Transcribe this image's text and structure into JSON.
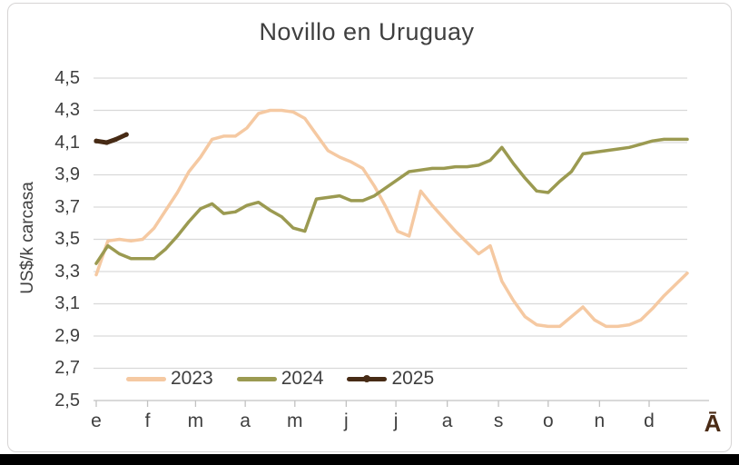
{
  "chart_data": {
    "type": "line",
    "title": "Novillo en Uruguay",
    "ylabel": "US$/k carcasa",
    "x_tick_labels": [
      "e",
      "f",
      "m",
      "a",
      "m",
      "j",
      "j",
      "a",
      "s",
      "o",
      "n",
      "d"
    ],
    "x_end_label": "Ā",
    "y_axis": {
      "min": 2.5,
      "max": 4.5,
      "step": 0.2,
      "tick_labels": [
        "4,5",
        "4,3",
        "4,1",
        "3,9",
        "3,7",
        "3,5",
        "3,3",
        "3,1",
        "2,9",
        "2,7",
        "2,5"
      ]
    },
    "grid": true,
    "legend_position": "inside-bottom-left",
    "colors": {
      "grid": "#d9d9d9",
      "axis": "#c2c2c2",
      "text": "#3f3f3f",
      "end_label": "#4a2b15"
    },
    "series": [
      {
        "name": "2023",
        "color": "#f5c9a2",
        "thick": false,
        "marker": false,
        "values": [
          3.28,
          3.49,
          3.5,
          3.49,
          3.5,
          3.57,
          3.68,
          3.79,
          3.92,
          4.01,
          4.12,
          4.14,
          4.14,
          4.19,
          4.28,
          4.3,
          4.3,
          4.29,
          4.25,
          4.15,
          4.05,
          4.01,
          3.98,
          3.94,
          3.83,
          3.7,
          3.55,
          3.52,
          3.8,
          3.71,
          3.63,
          3.55,
          3.48,
          3.41,
          3.46,
          3.24,
          3.12,
          3.02,
          2.97,
          2.96,
          2.96,
          3.02,
          3.08,
          3.0,
          2.96,
          2.96,
          2.97,
          3.0,
          3.07,
          3.15,
          3.22,
          3.29
        ]
      },
      {
        "name": "2024",
        "color": "#9b9a51",
        "thick": false,
        "marker": false,
        "values": [
          3.35,
          3.46,
          3.41,
          3.38,
          3.38,
          3.38,
          3.44,
          3.52,
          3.61,
          3.69,
          3.72,
          3.66,
          3.67,
          3.71,
          3.73,
          3.68,
          3.64,
          3.57,
          3.55,
          3.75,
          3.76,
          3.77,
          3.74,
          3.74,
          3.77,
          3.82,
          3.87,
          3.92,
          3.93,
          3.94,
          3.94,
          3.95,
          3.95,
          3.96,
          3.99,
          4.07,
          3.97,
          3.88,
          3.8,
          3.79,
          3.86,
          3.92,
          4.03,
          4.04,
          4.05,
          4.06,
          4.07,
          4.09,
          4.11,
          4.12,
          4.12,
          4.12
        ]
      },
      {
        "name": "2025",
        "color": "#472b15",
        "thick": true,
        "marker": true,
        "weeks": [
          0,
          0.9,
          1.7,
          2.6
        ],
        "values": [
          4.11,
          4.1,
          4.12,
          4.15
        ]
      }
    ]
  }
}
